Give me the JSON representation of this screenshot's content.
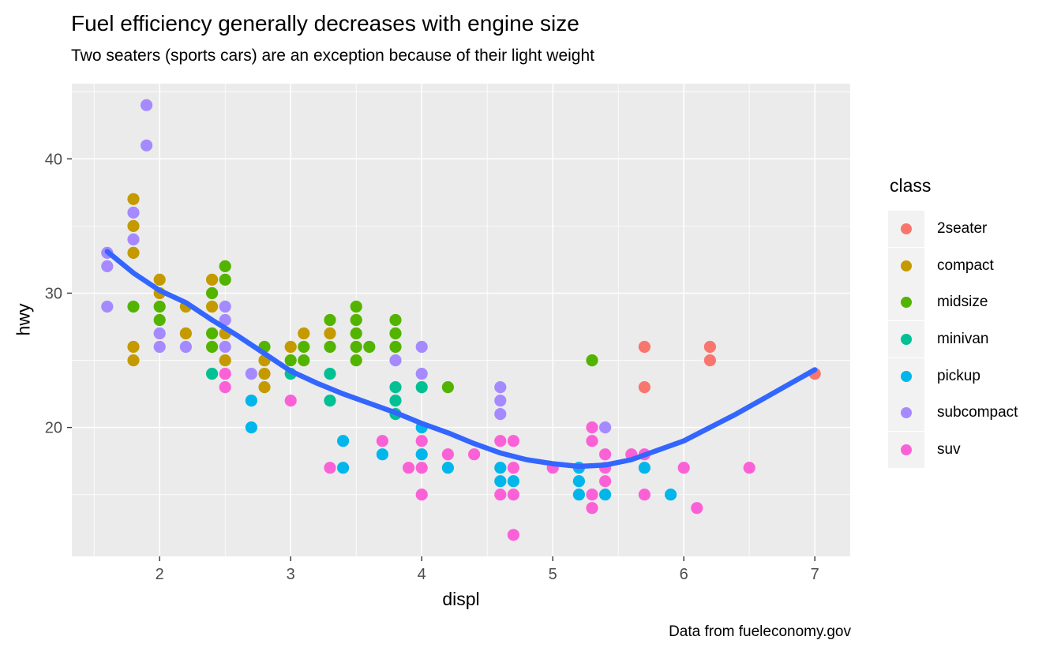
{
  "legend": {
    "title": "class",
    "items": [
      "2seater",
      "compact",
      "midsize",
      "minivan",
      "pickup",
      "subcompact",
      "suv"
    ]
  },
  "colors": {
    "panel_background": "#EBEBEB",
    "gridline": "#FFFFFF",
    "legend_key_background": "#F2F2F2",
    "tick_text": "#4D4D4D",
    "tick_mark": "#333333",
    "text": "#000000"
  },
  "chart_data": {
    "type": "scatter",
    "title": "Fuel efficiency generally decreases with engine size",
    "subtitle": "Two seaters (sports cars) are an exception because of their light weight",
    "caption": "Data from fueleconomy.gov",
    "xlabel": "displ",
    "ylabel": "hwy",
    "x_domain": [
      1.33,
      7.27
    ],
    "y_domain": [
      10.4,
      45.6
    ],
    "x_ticks": [
      2,
      3,
      4,
      5,
      6,
      7
    ],
    "y_ticks": [
      20,
      30,
      40
    ],
    "x_minor": [
      1.5,
      2.5,
      3.5,
      4.5,
      5.5,
      6.5
    ],
    "y_minor": [
      15,
      25,
      35,
      45
    ],
    "grid": true,
    "legend_position": "right",
    "classes": {
      "2seater": "#F8766D",
      "compact": "#C49A00",
      "midsize": "#53B400",
      "minivan": "#00C094",
      "pickup": "#00B6EB",
      "subcompact": "#A58AFF",
      "suv": "#FB61D7"
    },
    "points": [
      [
        1.6,
        33,
        "subcompact"
      ],
      [
        1.6,
        32,
        "subcompact"
      ],
      [
        1.6,
        29,
        "subcompact"
      ],
      [
        1.8,
        37,
        "compact"
      ],
      [
        1.8,
        36,
        "subcompact"
      ],
      [
        1.8,
        35,
        "compact"
      ],
      [
        1.8,
        34,
        "subcompact"
      ],
      [
        1.8,
        33,
        "compact"
      ],
      [
        1.8,
        29,
        "midsize"
      ],
      [
        1.8,
        26,
        "compact"
      ],
      [
        1.8,
        25,
        "compact"
      ],
      [
        1.9,
        44,
        "subcompact"
      ],
      [
        1.9,
        41,
        "subcompact"
      ],
      [
        2.0,
        31,
        "compact"
      ],
      [
        2.0,
        30,
        "compact"
      ],
      [
        2.0,
        29,
        "midsize"
      ],
      [
        2.0,
        28,
        "midsize"
      ],
      [
        2.0,
        27,
        "subcompact"
      ],
      [
        2.0,
        26,
        "subcompact"
      ],
      [
        2.2,
        29,
        "compact"
      ],
      [
        2.2,
        27,
        "compact"
      ],
      [
        2.2,
        26,
        "subcompact"
      ],
      [
        2.4,
        31,
        "compact"
      ],
      [
        2.4,
        30,
        "midsize"
      ],
      [
        2.4,
        29,
        "compact"
      ],
      [
        2.4,
        27,
        "midsize"
      ],
      [
        2.4,
        26,
        "midsize"
      ],
      [
        2.4,
        24,
        "minivan"
      ],
      [
        2.5,
        32,
        "midsize"
      ],
      [
        2.5,
        31,
        "midsize"
      ],
      [
        2.5,
        29,
        "subcompact"
      ],
      [
        2.5,
        28,
        "subcompact"
      ],
      [
        2.5,
        27,
        "compact"
      ],
      [
        2.5,
        26,
        "subcompact"
      ],
      [
        2.5,
        25,
        "compact"
      ],
      [
        2.5,
        24,
        "suv"
      ],
      [
        2.5,
        23,
        "suv"
      ],
      [
        2.7,
        24,
        "subcompact"
      ],
      [
        2.7,
        22,
        "pickup"
      ],
      [
        2.7,
        20,
        "pickup"
      ],
      [
        2.8,
        26,
        "midsize"
      ],
      [
        2.8,
        25,
        "compact"
      ],
      [
        2.8,
        24,
        "compact"
      ],
      [
        2.8,
        23,
        "compact"
      ],
      [
        3.0,
        26,
        "compact"
      ],
      [
        3.0,
        25,
        "midsize"
      ],
      [
        3.0,
        24,
        "minivan"
      ],
      [
        3.0,
        22,
        "suv"
      ],
      [
        3.1,
        27,
        "compact"
      ],
      [
        3.1,
        26,
        "midsize"
      ],
      [
        3.1,
        25,
        "midsize"
      ],
      [
        3.3,
        28,
        "midsize"
      ],
      [
        3.3,
        27,
        "compact"
      ],
      [
        3.3,
        26,
        "midsize"
      ],
      [
        3.3,
        24,
        "minivan"
      ],
      [
        3.3,
        22,
        "minivan"
      ],
      [
        3.3,
        17,
        "suv"
      ],
      [
        3.4,
        19,
        "pickup"
      ],
      [
        3.4,
        17,
        "pickup"
      ],
      [
        3.5,
        29,
        "midsize"
      ],
      [
        3.5,
        28,
        "midsize"
      ],
      [
        3.5,
        27,
        "midsize"
      ],
      [
        3.5,
        26,
        "midsize"
      ],
      [
        3.5,
        25,
        "midsize"
      ],
      [
        3.6,
        26,
        "midsize"
      ],
      [
        3.7,
        19,
        "suv"
      ],
      [
        3.7,
        18,
        "pickup"
      ],
      [
        3.8,
        28,
        "midsize"
      ],
      [
        3.8,
        27,
        "midsize"
      ],
      [
        3.8,
        26,
        "midsize"
      ],
      [
        3.8,
        25,
        "subcompact"
      ],
      [
        3.8,
        23,
        "minivan"
      ],
      [
        3.8,
        22,
        "minivan"
      ],
      [
        3.8,
        21,
        "minivan"
      ],
      [
        3.9,
        17,
        "suv"
      ],
      [
        4.0,
        26,
        "subcompact"
      ],
      [
        4.0,
        24,
        "subcompact"
      ],
      [
        4.0,
        23,
        "minivan"
      ],
      [
        4.0,
        20,
        "pickup"
      ],
      [
        4.0,
        19,
        "suv"
      ],
      [
        4.0,
        18,
        "pickup"
      ],
      [
        4.0,
        17,
        "suv"
      ],
      [
        4.0,
        15,
        "suv"
      ],
      [
        4.2,
        23,
        "midsize"
      ],
      [
        4.2,
        18,
        "suv"
      ],
      [
        4.2,
        17,
        "pickup"
      ],
      [
        4.4,
        18,
        "suv"
      ],
      [
        4.6,
        23,
        "subcompact"
      ],
      [
        4.6,
        22,
        "subcompact"
      ],
      [
        4.6,
        21,
        "subcompact"
      ],
      [
        4.6,
        19,
        "suv"
      ],
      [
        4.6,
        17,
        "pickup"
      ],
      [
        4.6,
        16,
        "pickup"
      ],
      [
        4.6,
        15,
        "suv"
      ],
      [
        4.7,
        19,
        "suv"
      ],
      [
        4.7,
        17,
        "suv"
      ],
      [
        4.7,
        16,
        "pickup"
      ],
      [
        4.7,
        15,
        "suv"
      ],
      [
        4.7,
        12,
        "suv"
      ],
      [
        5.0,
        17,
        "suv"
      ],
      [
        5.2,
        17,
        "pickup"
      ],
      [
        5.2,
        16,
        "pickup"
      ],
      [
        5.2,
        15,
        "pickup"
      ],
      [
        5.3,
        25,
        "midsize"
      ],
      [
        5.3,
        20,
        "suv"
      ],
      [
        5.3,
        19,
        "suv"
      ],
      [
        5.3,
        15,
        "suv"
      ],
      [
        5.3,
        14,
        "suv"
      ],
      [
        5.4,
        20,
        "subcompact"
      ],
      [
        5.4,
        18,
        "suv"
      ],
      [
        5.4,
        17,
        "suv"
      ],
      [
        5.4,
        16,
        "suv"
      ],
      [
        5.4,
        15,
        "pickup"
      ],
      [
        5.6,
        18,
        "suv"
      ],
      [
        5.7,
        26,
        "2seater"
      ],
      [
        5.7,
        23,
        "2seater"
      ],
      [
        5.7,
        18,
        "suv"
      ],
      [
        5.7,
        17,
        "pickup"
      ],
      [
        5.7,
        15,
        "suv"
      ],
      [
        5.9,
        15,
        "pickup"
      ],
      [
        6.0,
        17,
        "suv"
      ],
      [
        6.1,
        14,
        "suv"
      ],
      [
        6.2,
        26,
        "2seater"
      ],
      [
        6.2,
        25,
        "2seater"
      ],
      [
        6.5,
        17,
        "suv"
      ],
      [
        7.0,
        24,
        "2seater"
      ]
    ],
    "smooth": {
      "color": "#3366FF",
      "width": 6.5,
      "points": [
        [
          1.6,
          33.1
        ],
        [
          1.8,
          31.5
        ],
        [
          2.0,
          30.2
        ],
        [
          2.2,
          29.3
        ],
        [
          2.4,
          28.0
        ],
        [
          2.6,
          26.8
        ],
        [
          2.8,
          25.5
        ],
        [
          3.0,
          24.2
        ],
        [
          3.2,
          23.3
        ],
        [
          3.4,
          22.5
        ],
        [
          3.6,
          21.8
        ],
        [
          3.8,
          21.1
        ],
        [
          4.0,
          20.3
        ],
        [
          4.2,
          19.6
        ],
        [
          4.4,
          18.8
        ],
        [
          4.6,
          18.1
        ],
        [
          4.8,
          17.6
        ],
        [
          5.0,
          17.3
        ],
        [
          5.2,
          17.1
        ],
        [
          5.4,
          17.2
        ],
        [
          5.6,
          17.6
        ],
        [
          5.8,
          18.3
        ],
        [
          6.0,
          19.0
        ],
        [
          6.2,
          20.0
        ],
        [
          6.4,
          21.0
        ],
        [
          6.6,
          22.1
        ],
        [
          6.8,
          23.2
        ],
        [
          7.0,
          24.3
        ]
      ]
    }
  }
}
